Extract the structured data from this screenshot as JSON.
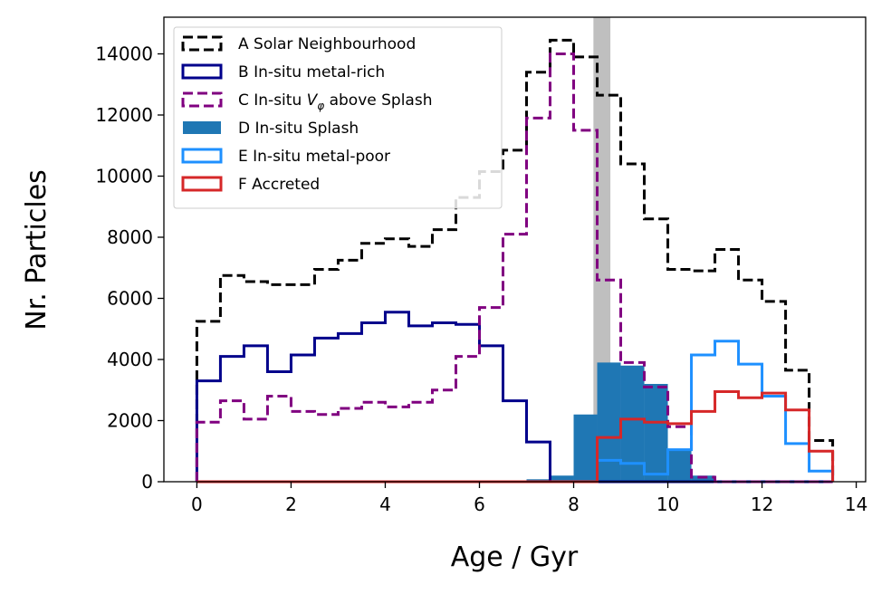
{
  "chart_data": {
    "type": "histogram",
    "title": "",
    "xlabel": "Age / Gyr",
    "ylabel": "Nr. Particles",
    "xlim": [
      -0.7,
      14.2
    ],
    "ylim": [
      0,
      15200
    ],
    "xticks": [
      0,
      2,
      4,
      6,
      8,
      10,
      12,
      14
    ],
    "yticks": [
      0,
      2000,
      4000,
      6000,
      8000,
      10000,
      12000,
      14000
    ],
    "bin_edges": [
      0,
      0.5,
      1.0,
      1.5,
      2.0,
      2.5,
      3.0,
      3.5,
      4.0,
      4.5,
      5.0,
      5.5,
      6.0,
      6.5,
      7.0,
      7.5,
      8.0,
      8.5,
      9.0,
      9.5,
      10.0,
      10.5,
      11.0,
      11.5,
      12.0,
      12.5,
      13.0,
      13.5
    ],
    "shaded_band": {
      "x_start": 8.42,
      "x_end": 8.78,
      "color": "#bfbfbf"
    },
    "legend_position": "upper-left",
    "series": [
      {
        "key": "A",
        "name": "A Solar Neighbourhood",
        "style": "dashed",
        "color": "#000000",
        "values": [
          5250,
          6750,
          6550,
          6450,
          6450,
          6950,
          7250,
          7800,
          7950,
          7700,
          8250,
          9300,
          10150,
          10850,
          13400,
          14450,
          13900,
          12650,
          10400,
          8600,
          6950,
          6900,
          7600,
          6600,
          5900,
          3650,
          1350
        ]
      },
      {
        "key": "B",
        "name": "B In-situ metal-rich",
        "style": "solid",
        "color": "#00008b",
        "values": [
          3300,
          4100,
          4450,
          3600,
          4150,
          4700,
          4850,
          5200,
          5550,
          5100,
          5200,
          5150,
          4450,
          2650,
          1300,
          0,
          0,
          0,
          0,
          0,
          0,
          0,
          0,
          0,
          0,
          0,
          0
        ]
      },
      {
        "key": "C",
        "name": "C In-situ V_φ above Splash",
        "style": "dashed",
        "color": "#800080",
        "values": [
          1950,
          2650,
          2050,
          2800,
          2300,
          2200,
          2400,
          2600,
          2450,
          2600,
          3000,
          4100,
          5700,
          8100,
          11900,
          14000,
          11500,
          6600,
          3900,
          3100,
          1800,
          150,
          0,
          0,
          0,
          0,
          0
        ]
      },
      {
        "key": "D",
        "name": "D In-situ Splash",
        "style": "filled",
        "color": "#1f77b4",
        "values": [
          0,
          0,
          0,
          0,
          0,
          0,
          0,
          0,
          0,
          0,
          0,
          0,
          0,
          0,
          80,
          200,
          2200,
          3900,
          3800,
          3200,
          1050,
          200,
          0,
          0,
          0,
          0,
          0
        ]
      },
      {
        "key": "E",
        "name": "E In-situ metal-poor",
        "style": "solid",
        "color": "#1e90ff",
        "values": [
          0,
          0,
          0,
          0,
          0,
          0,
          0,
          0,
          0,
          0,
          0,
          0,
          0,
          0,
          0,
          0,
          0,
          700,
          600,
          250,
          1050,
          4150,
          4600,
          3850,
          2800,
          1250,
          350
        ]
      },
      {
        "key": "F",
        "name": "F Accreted",
        "style": "solid",
        "color": "#d62728",
        "values": [
          0,
          0,
          0,
          0,
          0,
          0,
          0,
          0,
          0,
          0,
          0,
          0,
          0,
          0,
          0,
          0,
          0,
          1450,
          2050,
          1950,
          1900,
          2300,
          2950,
          2750,
          2900,
          2350,
          1000
        ]
      }
    ]
  }
}
